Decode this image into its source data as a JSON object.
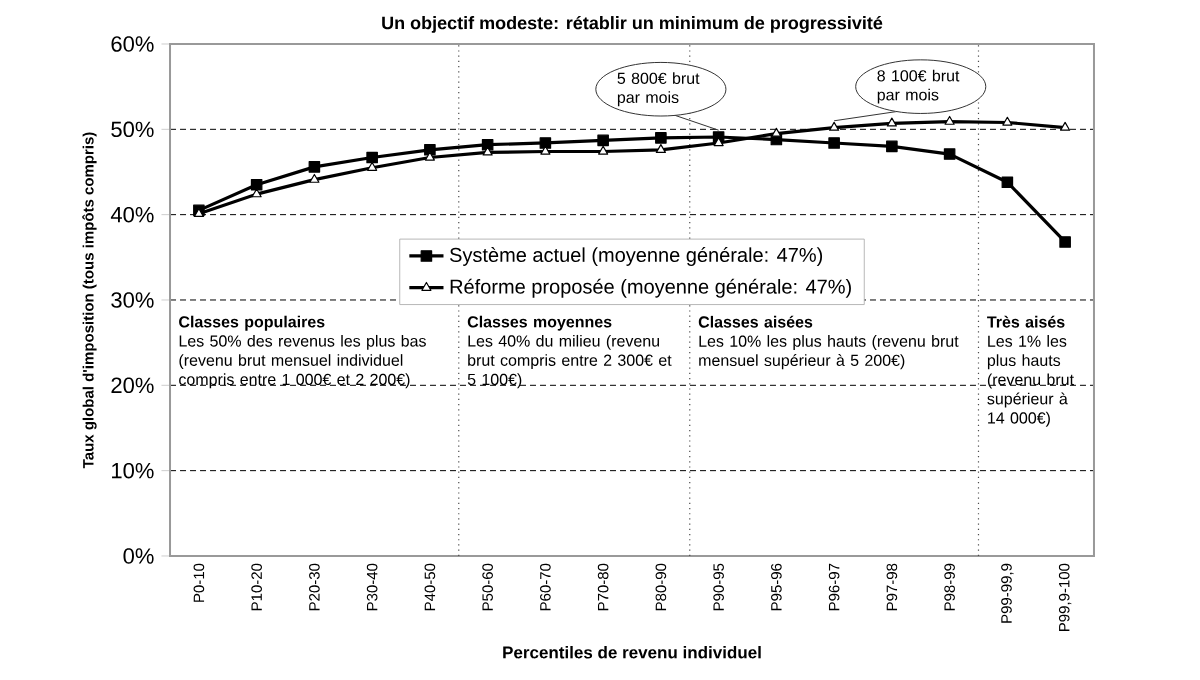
{
  "chart_data": {
    "type": "line",
    "title": "Un objectif modeste: rétablir un minimum de progressivité",
    "xlabel": "Percentiles de revenu individuel",
    "ylabel": "Taux global d'imposition (tous impôts compris)",
    "categories": [
      "P0-10",
      "P10-20",
      "P20-30",
      "P30-40",
      "P40-50",
      "P50-60",
      "P60-70",
      "P70-80",
      "P80-90",
      "P90-95",
      "P95-96",
      "P96-97",
      "P97-98",
      "P98-99",
      "P99-99,9",
      "P99,9-100"
    ],
    "series": [
      {
        "name": "Système actuel (moyenne générale: 47%)",
        "color": "#000000",
        "marker": "square",
        "values": [
          40.5,
          43.5,
          45.6,
          46.7,
          47.6,
          48.2,
          48.4,
          48.7,
          49.0,
          49.1,
          48.8,
          48.4,
          48.0,
          47.1,
          43.8,
          36.8
        ]
      },
      {
        "name": "Réforme proposée (moyenne générale: 47%)",
        "color": "#000000",
        "marker": "triangle",
        "values": [
          40.1,
          42.4,
          44.1,
          45.5,
          46.7,
          47.3,
          47.4,
          47.4,
          47.6,
          48.4,
          49.5,
          50.2,
          50.7,
          50.9,
          50.8,
          50.2
        ]
      }
    ],
    "ylim": [
      0,
      60
    ],
    "yticks": [
      {
        "value": 0,
        "label": "0%"
      },
      {
        "value": 10,
        "label": "10%"
      },
      {
        "value": 20,
        "label": "20%"
      },
      {
        "value": 30,
        "label": "30%"
      },
      {
        "value": 40,
        "label": "40%"
      },
      {
        "value": 50,
        "label": "50%"
      },
      {
        "value": 60,
        "label": "60%"
      }
    ],
    "grid": "y",
    "legend": "center",
    "line_style": "solid",
    "annotations": [
      {
        "text": "5 800€ brut par mois",
        "x": "P90-95",
        "y": 49.1
      },
      {
        "text": "8 100€ brut par mois",
        "x": "P96-97",
        "y": 50.2
      },
      "Classes populaires",
      "Les 50% des revenus les plus bas (revenu brut mensuel individuel compris entre 1 000€ et 2 200€)",
      "Classes moyennes",
      "Les 40% du milieu (revenu brut compris entre 2 300€ et 5 100€)",
      "Classes aisées",
      "Les 10% les plus hauts (revenu brut mensuel supérieur à 5 200€)",
      "Très aisés",
      "Les 1% les plus hauts (revenu brut supérieur à 14 000€)"
    ]
  }
}
